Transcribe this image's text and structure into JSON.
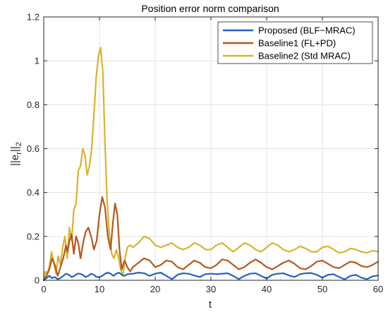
{
  "chart_data": {
    "type": "line",
    "title": "Position error norm comparison",
    "xlabel": "t",
    "ylabel_parts": {
      "prefix": "||e",
      "subscript": "r",
      "suffix": "||",
      "suffix_subscript": "2"
    },
    "xlim": [
      0,
      60
    ],
    "ylim": [
      0,
      1.2
    ],
    "xticks": [
      0,
      10,
      20,
      30,
      40,
      50,
      60
    ],
    "yticks": [
      0,
      0.2,
      0.4,
      0.6,
      0.8,
      1,
      1.2
    ],
    "xtick_labels": [
      "0",
      "10",
      "20",
      "30",
      "40",
      "50",
      "60"
    ],
    "ytick_labels": [
      "0",
      "0.2",
      "0.4",
      "0.6",
      "0.8",
      "1",
      "1.2"
    ],
    "grid": true,
    "legend_position": "top-right",
    "series": [
      {
        "name": "Proposed (BLF−MRAC)",
        "color": "#2260c4",
        "x": [
          0,
          0.5,
          1,
          1.5,
          2,
          2.5,
          3,
          3.5,
          4,
          4.5,
          5,
          5.5,
          6,
          6.5,
          7,
          7.5,
          8,
          8.5,
          9,
          9.5,
          10,
          10.5,
          11,
          11.5,
          12,
          12.5,
          13,
          13.5,
          14,
          14.5,
          15,
          16,
          17,
          18,
          19,
          20,
          21,
          22,
          23,
          24,
          25,
          26,
          27,
          28,
          29,
          30,
          31,
          32,
          33,
          34,
          35,
          36,
          37,
          38,
          39,
          40,
          41,
          42,
          43,
          44,
          45,
          46,
          47,
          48,
          49,
          50,
          51,
          52,
          53,
          54,
          55,
          56,
          57,
          58,
          59,
          60
        ],
        "y": [
          0.0,
          0.01,
          0.02,
          0.01,
          0.015,
          0.005,
          0.01,
          0.02,
          0.03,
          0.025,
          0.015,
          0.02,
          0.03,
          0.03,
          0.025,
          0.015,
          0.02,
          0.03,
          0.025,
          0.015,
          0.015,
          0.02,
          0.03,
          0.035,
          0.03,
          0.02,
          0.03,
          0.035,
          0.025,
          0.02,
          0.028,
          0.03,
          0.035,
          0.032,
          0.02,
          0.03,
          0.035,
          0.02,
          0.005,
          0.025,
          0.032,
          0.03,
          0.022,
          0.015,
          0.028,
          0.03,
          0.028,
          0.03,
          0.032,
          0.02,
          0.005,
          0.02,
          0.03,
          0.032,
          0.02,
          0.008,
          0.025,
          0.03,
          0.032,
          0.022,
          0.015,
          0.028,
          0.032,
          0.033,
          0.025,
          0.012,
          0.025,
          0.028,
          0.015,
          0.004,
          0.02,
          0.025,
          0.012,
          0.005,
          0.018,
          0.022
        ]
      },
      {
        "name": "Baseline1 (FL+PD)",
        "color": "#b35a1f",
        "x": [
          0,
          0.5,
          1,
          1.5,
          2,
          2.5,
          3,
          3.5,
          4,
          4.3,
          4.6,
          5,
          5.4,
          5.8,
          6.2,
          6.6,
          7,
          7.5,
          8,
          8.5,
          9,
          9.5,
          10,
          10.5,
          11,
          11.5,
          12,
          12.4,
          12.8,
          13.2,
          13.6,
          14,
          14.5,
          15,
          15.5,
          16,
          17,
          18,
          19,
          20,
          21,
          22,
          23,
          24,
          25,
          26,
          27,
          28,
          29,
          30,
          31,
          32,
          33,
          34,
          35,
          36,
          37,
          38,
          39,
          40,
          41,
          42,
          43,
          44,
          45,
          46,
          47,
          48,
          49,
          50,
          51,
          52,
          53,
          54,
          55,
          56,
          57,
          58,
          59,
          60
        ],
        "y": [
          0.0,
          0.02,
          0.05,
          0.1,
          0.07,
          0.02,
          0.06,
          0.1,
          0.16,
          0.13,
          0.18,
          0.21,
          0.12,
          0.2,
          0.17,
          0.1,
          0.16,
          0.22,
          0.24,
          0.2,
          0.14,
          0.18,
          0.3,
          0.38,
          0.33,
          0.2,
          0.14,
          0.26,
          0.35,
          0.3,
          0.14,
          0.05,
          0.09,
          0.06,
          0.04,
          0.06,
          0.08,
          0.1,
          0.09,
          0.06,
          0.07,
          0.09,
          0.085,
          0.06,
          0.05,
          0.07,
          0.09,
          0.08,
          0.06,
          0.055,
          0.07,
          0.095,
          0.09,
          0.07,
          0.05,
          0.06,
          0.08,
          0.095,
          0.08,
          0.06,
          0.05,
          0.065,
          0.08,
          0.09,
          0.075,
          0.055,
          0.05,
          0.065,
          0.085,
          0.09,
          0.075,
          0.06,
          0.055,
          0.07,
          0.085,
          0.08,
          0.065,
          0.06,
          0.07,
          0.085
        ]
      },
      {
        "name": "Baseline2 (Std MRAC)",
        "color": "#d9b32a",
        "x": [
          0,
          0.3,
          0.6,
          1,
          1.4,
          1.8,
          2.2,
          2.6,
          3,
          3.4,
          3.8,
          4.2,
          4.6,
          5,
          5.4,
          5.8,
          6.2,
          6.6,
          7,
          7.4,
          7.8,
          8.2,
          8.6,
          9,
          9.4,
          9.8,
          10.2,
          10.6,
          11,
          11.4,
          11.8,
          12.2,
          12.6,
          13,
          13.4,
          13.8,
          14.2,
          14.6,
          15,
          15.5,
          16,
          17,
          18,
          19,
          20,
          21,
          22,
          23,
          24,
          25,
          26,
          27,
          28,
          29,
          30,
          31,
          32,
          33,
          34,
          35,
          36,
          37,
          38,
          39,
          40,
          41,
          42,
          43,
          44,
          45,
          46,
          47,
          48,
          49,
          50,
          51,
          52,
          53,
          54,
          55,
          56,
          57,
          58,
          59,
          60
        ],
        "y": [
          0.0,
          0.04,
          0.03,
          0.06,
          0.13,
          0.08,
          0.03,
          0.11,
          0.07,
          0.15,
          0.2,
          0.1,
          0.24,
          0.18,
          0.32,
          0.35,
          0.5,
          0.52,
          0.6,
          0.57,
          0.48,
          0.52,
          0.6,
          0.75,
          0.92,
          1.02,
          1.06,
          0.95,
          0.62,
          0.35,
          0.2,
          0.12,
          0.1,
          0.14,
          0.11,
          0.05,
          0.02,
          0.1,
          0.15,
          0.16,
          0.15,
          0.17,
          0.2,
          0.19,
          0.16,
          0.15,
          0.16,
          0.17,
          0.15,
          0.14,
          0.15,
          0.17,
          0.16,
          0.14,
          0.14,
          0.16,
          0.17,
          0.15,
          0.13,
          0.15,
          0.17,
          0.16,
          0.14,
          0.13,
          0.15,
          0.17,
          0.16,
          0.14,
          0.13,
          0.14,
          0.155,
          0.145,
          0.13,
          0.13,
          0.15,
          0.155,
          0.14,
          0.125,
          0.13,
          0.145,
          0.14,
          0.13,
          0.125,
          0.135,
          0.13
        ]
      }
    ]
  }
}
